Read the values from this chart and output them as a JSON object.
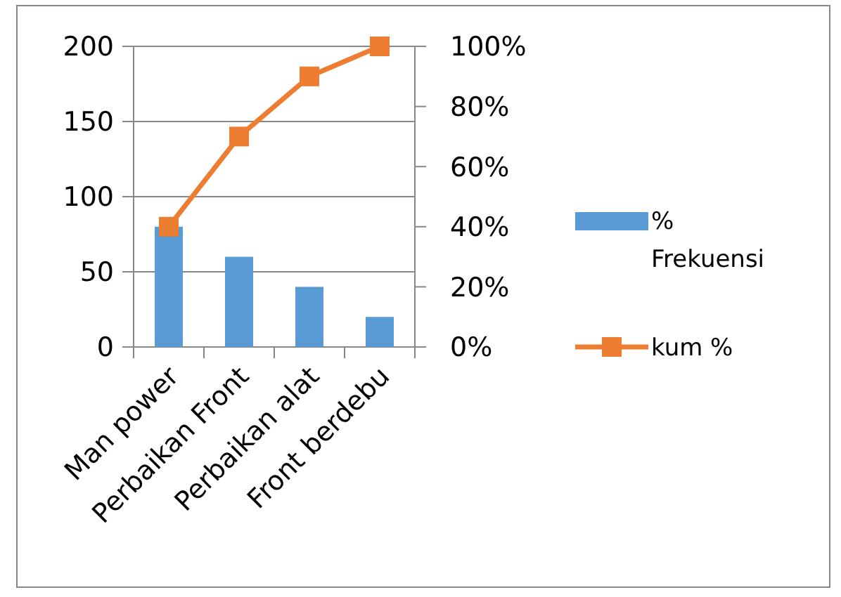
{
  "chart_data": {
    "type": "bar",
    "categories": [
      "Man power",
      "Perbaikan Front",
      "Perbaikan alat",
      "Front berdebu"
    ],
    "series": [
      {
        "name": "% Frekuensi",
        "color": "#5b9bd5",
        "values": [
          80,
          60,
          40,
          20
        ]
      },
      {
        "name": "kum %",
        "type": "line",
        "axis": "y2",
        "color": "#ed7d31",
        "marker": "square",
        "values": [
          40,
          70,
          90,
          100
        ]
      }
    ],
    "ylim": [
      0,
      200
    ],
    "yticks": [
      0,
      50,
      100,
      150,
      200
    ],
    "y2lim": [
      0,
      100
    ],
    "y2ticks": [
      {
        "value": 0,
        "label": "0%"
      },
      {
        "value": 20,
        "label": "20%"
      },
      {
        "value": 40,
        "label": "40%"
      },
      {
        "value": 60,
        "label": "60%"
      },
      {
        "value": 80,
        "label": "80%"
      },
      {
        "value": 100,
        "label": "100%"
      }
    ],
    "grid": "y",
    "legend": "right"
  }
}
